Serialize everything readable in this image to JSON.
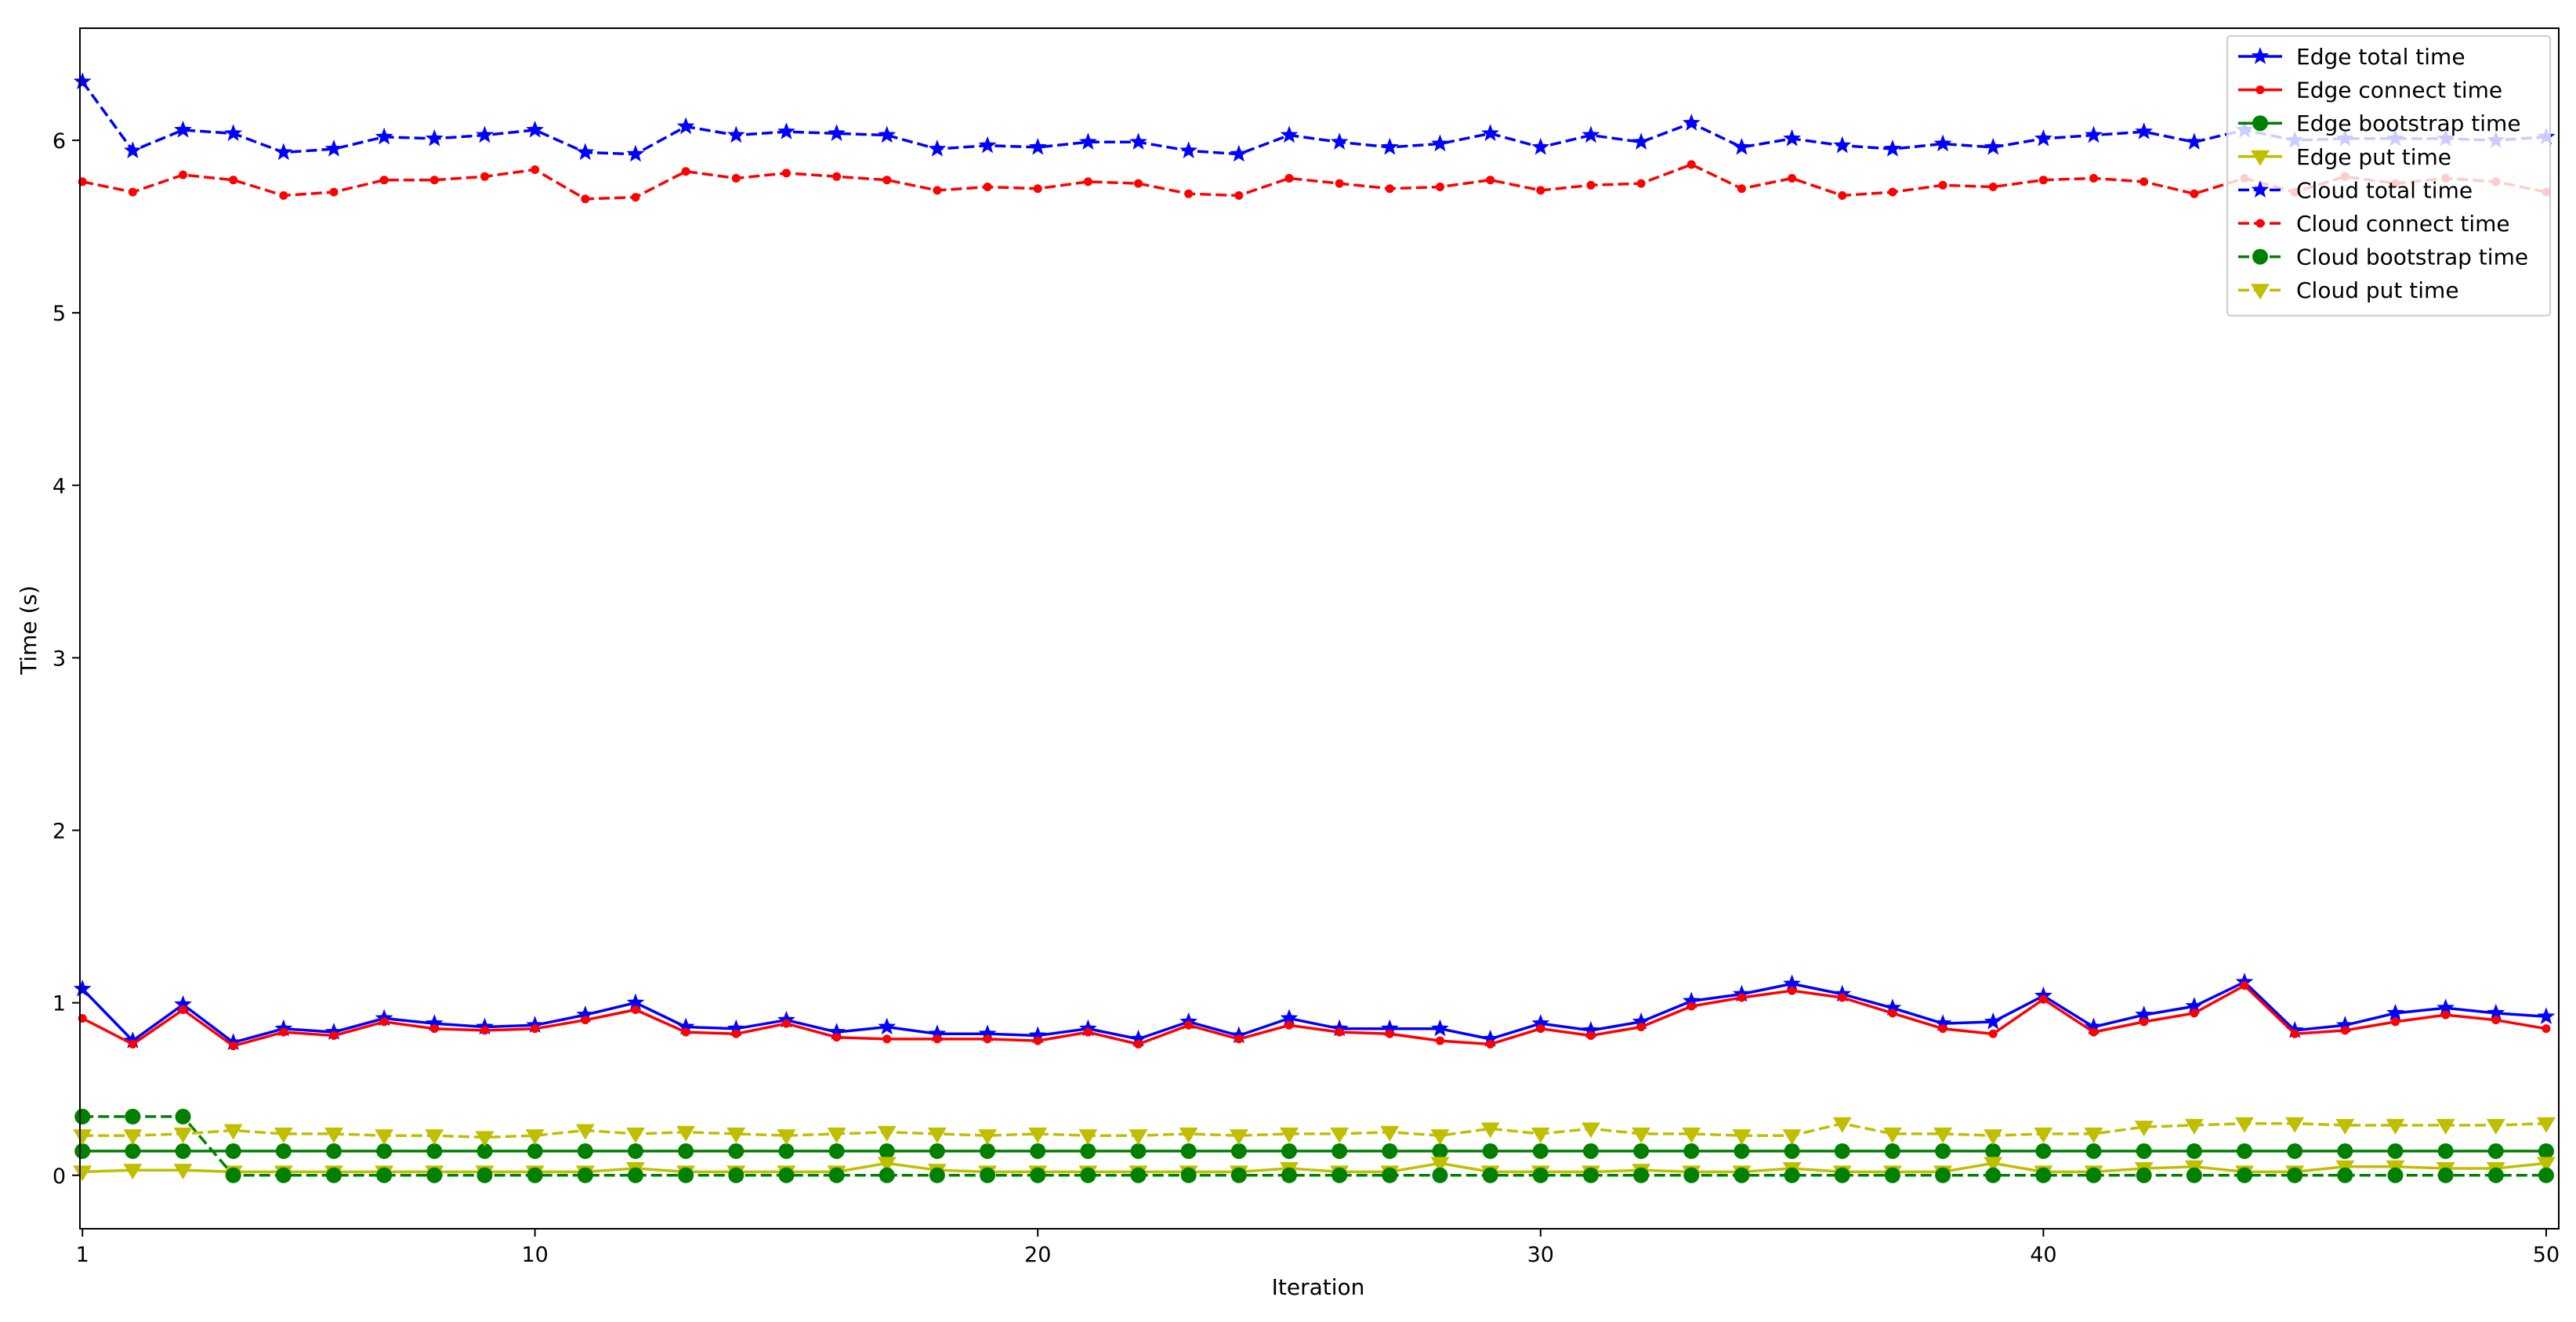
{
  "chart_data": {
    "type": "line",
    "title": "",
    "xlabel": "Iteration",
    "ylabel": "Time (s)",
    "xlim": [
      0.95,
      50.25
    ],
    "ylim": [
      -0.31,
      6.65
    ],
    "x_ticks": [
      1,
      10,
      20,
      30,
      40,
      50
    ],
    "y_ticks": [
      0,
      1,
      2,
      3,
      4,
      5,
      6
    ],
    "grid": false,
    "legend_position": "top-right",
    "x": [
      1,
      2,
      3,
      4,
      5,
      6,
      7,
      8,
      9,
      10,
      11,
      12,
      13,
      14,
      15,
      16,
      17,
      18,
      19,
      20,
      21,
      22,
      23,
      24,
      25,
      26,
      27,
      28,
      29,
      30,
      31,
      32,
      33,
      34,
      35,
      36,
      37,
      38,
      39,
      40,
      41,
      42,
      43,
      44,
      45,
      46,
      47,
      48,
      49,
      50
    ],
    "series": [
      {
        "name": "Edge total time",
        "color": "#0000ff",
        "line_style": "solid",
        "marker": "star",
        "values": [
          1.08,
          0.78,
          0.99,
          0.77,
          0.85,
          0.83,
          0.91,
          0.88,
          0.86,
          0.87,
          0.93,
          1.0,
          0.86,
          0.85,
          0.9,
          0.83,
          0.86,
          0.82,
          0.82,
          0.81,
          0.85,
          0.79,
          0.89,
          0.81,
          0.91,
          0.85,
          0.85,
          0.85,
          0.79,
          0.88,
          0.84,
          0.89,
          1.01,
          1.05,
          1.11,
          1.05,
          0.97,
          0.88,
          0.89,
          1.04,
          0.86,
          0.93,
          0.98,
          1.12,
          0.84,
          0.87,
          0.94,
          0.97,
          0.94,
          0.92
        ]
      },
      {
        "name": "Edge connect time",
        "color": "#ff0000",
        "line_style": "solid",
        "marker": "point",
        "values": [
          0.91,
          0.76,
          0.96,
          0.75,
          0.83,
          0.81,
          0.89,
          0.85,
          0.84,
          0.85,
          0.9,
          0.96,
          0.83,
          0.82,
          0.88,
          0.8,
          0.79,
          0.79,
          0.79,
          0.78,
          0.83,
          0.76,
          0.87,
          0.79,
          0.87,
          0.83,
          0.82,
          0.78,
          0.76,
          0.85,
          0.81,
          0.86,
          0.98,
          1.03,
          1.07,
          1.03,
          0.94,
          0.85,
          0.82,
          1.02,
          0.83,
          0.89,
          0.94,
          1.1,
          0.82,
          0.84,
          0.89,
          0.93,
          0.9,
          0.85
        ]
      },
      {
        "name": "Edge bootstrap time",
        "color": "#008000",
        "line_style": "solid",
        "marker": "circle",
        "values": [
          0.14,
          0.14,
          0.14,
          0.14,
          0.14,
          0.14,
          0.14,
          0.14,
          0.14,
          0.14,
          0.14,
          0.14,
          0.14,
          0.14,
          0.14,
          0.14,
          0.14,
          0.14,
          0.14,
          0.14,
          0.14,
          0.14,
          0.14,
          0.14,
          0.14,
          0.14,
          0.14,
          0.14,
          0.14,
          0.14,
          0.14,
          0.14,
          0.14,
          0.14,
          0.14,
          0.14,
          0.14,
          0.14,
          0.14,
          0.14,
          0.14,
          0.14,
          0.14,
          0.14,
          0.14,
          0.14,
          0.14,
          0.14,
          0.14,
          0.14
        ]
      },
      {
        "name": "Edge put time",
        "color": "#bfbf00",
        "line_style": "solid",
        "marker": "triangle-down",
        "values": [
          0.02,
          0.03,
          0.03,
          0.02,
          0.02,
          0.02,
          0.02,
          0.02,
          0.02,
          0.02,
          0.02,
          0.04,
          0.02,
          0.02,
          0.02,
          0.02,
          0.07,
          0.03,
          0.02,
          0.02,
          0.02,
          0.02,
          0.02,
          0.02,
          0.04,
          0.02,
          0.02,
          0.07,
          0.02,
          0.02,
          0.02,
          0.03,
          0.02,
          0.02,
          0.04,
          0.02,
          0.02,
          0.02,
          0.07,
          0.02,
          0.02,
          0.04,
          0.05,
          0.02,
          0.02,
          0.05,
          0.05,
          0.04,
          0.04,
          0.07
        ]
      },
      {
        "name": "Cloud total time",
        "color": "#0000ff",
        "line_style": "dashed",
        "marker": "star",
        "values": [
          6.34,
          5.94,
          6.06,
          6.04,
          5.93,
          5.95,
          6.02,
          6.01,
          6.03,
          6.06,
          5.93,
          5.92,
          6.08,
          6.03,
          6.05,
          6.04,
          6.03,
          5.95,
          5.97,
          5.96,
          5.99,
          5.99,
          5.94,
          5.92,
          6.03,
          5.99,
          5.96,
          5.98,
          6.04,
          5.96,
          6.03,
          5.99,
          6.1,
          5.96,
          6.01,
          5.97,
          5.95,
          5.98,
          5.96,
          6.01,
          6.03,
          6.05,
          5.99,
          6.06,
          6.0,
          6.01,
          6.01,
          6.01,
          6.0,
          6.02
        ]
      },
      {
        "name": "Cloud connect time",
        "color": "#ff0000",
        "line_style": "dashed",
        "marker": "point",
        "values": [
          5.76,
          5.7,
          5.8,
          5.77,
          5.68,
          5.7,
          5.77,
          5.77,
          5.79,
          5.83,
          5.66,
          5.67,
          5.82,
          5.78,
          5.81,
          5.79,
          5.77,
          5.71,
          5.73,
          5.72,
          5.76,
          5.75,
          5.69,
          5.68,
          5.78,
          5.75,
          5.72,
          5.73,
          5.77,
          5.71,
          5.74,
          5.75,
          5.86,
          5.72,
          5.78,
          5.68,
          5.7,
          5.74,
          5.73,
          5.77,
          5.78,
          5.76,
          5.69,
          5.78,
          5.7,
          5.79,
          5.75,
          5.78,
          5.76,
          5.7
        ]
      },
      {
        "name": "Cloud bootstrap time",
        "color": "#008000",
        "line_style": "dashed",
        "marker": "circle",
        "values": [
          0.34,
          0.34,
          0.34,
          0.0,
          0.0,
          0.0,
          0.0,
          0.0,
          0.0,
          0.0,
          0.0,
          0.0,
          0.0,
          0.0,
          0.0,
          0.0,
          0.0,
          0.0,
          0.0,
          0.0,
          0.0,
          0.0,
          0.0,
          0.0,
          0.0,
          0.0,
          0.0,
          0.0,
          0.0,
          0.0,
          0.0,
          0.0,
          0.0,
          0.0,
          0.0,
          0.0,
          0.0,
          0.0,
          0.0,
          0.0,
          0.0,
          0.0,
          0.0,
          0.0,
          0.0,
          0.0,
          0.0,
          0.0,
          0.0,
          0.0
        ]
      },
      {
        "name": "Cloud put time",
        "color": "#bfbf00",
        "line_style": "dashed",
        "marker": "triangle-down",
        "values": [
          0.23,
          0.23,
          0.24,
          0.26,
          0.24,
          0.24,
          0.23,
          0.23,
          0.22,
          0.23,
          0.26,
          0.24,
          0.25,
          0.24,
          0.23,
          0.24,
          0.25,
          0.24,
          0.23,
          0.24,
          0.23,
          0.23,
          0.24,
          0.23,
          0.24,
          0.24,
          0.25,
          0.23,
          0.27,
          0.24,
          0.27,
          0.24,
          0.24,
          0.23,
          0.23,
          0.3,
          0.24,
          0.24,
          0.23,
          0.24,
          0.24,
          0.28,
          0.29,
          0.3,
          0.3,
          0.29,
          0.29,
          0.29,
          0.29,
          0.3
        ]
      }
    ]
  }
}
